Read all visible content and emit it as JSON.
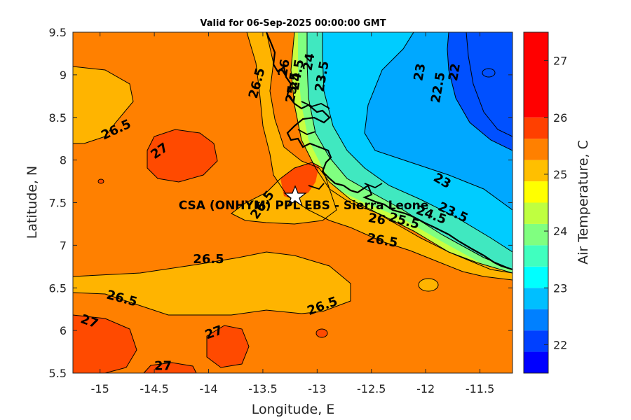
{
  "title": "Valid for 06-Sep-2025 00:00:00 GMT",
  "axes": {
    "xlabel": "Longitude, E",
    "ylabel": "Latitude, N",
    "xlim": [
      -15.25,
      -11.2
    ],
    "ylim": [
      5.5,
      9.5
    ],
    "xticks": [
      -15,
      -14.5,
      -14,
      -13.5,
      -13,
      -12.5,
      -12,
      -11.5
    ],
    "yticks": [
      5.5,
      6,
      6.5,
      7,
      7.5,
      8,
      8.5,
      9,
      9.5
    ]
  },
  "colorbar": {
    "label": "Air Temperature, C",
    "ticks": [
      22,
      23,
      24,
      25,
      26,
      27
    ],
    "range": [
      21.5,
      27.5
    ],
    "levels": [
      {
        "from": 21.5,
        "to": 21.875,
        "color": "#0000ff"
      },
      {
        "from": 21.875,
        "to": 22.25,
        "color": "#0040ff"
      },
      {
        "from": 22.25,
        "to": 22.625,
        "color": "#0080ff"
      },
      {
        "from": 22.625,
        "to": 23.0,
        "color": "#00bfff"
      },
      {
        "from": 23.0,
        "to": 23.375,
        "color": "#00ffff"
      },
      {
        "from": 23.375,
        "to": 23.75,
        "color": "#40ffbf"
      },
      {
        "from": 23.75,
        "to": 24.125,
        "color": "#80ff80"
      },
      {
        "from": 24.125,
        "to": 24.5,
        "color": "#bfff40"
      },
      {
        "from": 24.5,
        "to": 24.875,
        "color": "#ffff00"
      },
      {
        "from": 24.875,
        "to": 25.25,
        "color": "#ffbf00"
      },
      {
        "from": 25.25,
        "to": 25.625,
        "color": "#ff8000"
      },
      {
        "from": 25.625,
        "to": 26.0,
        "color": "#ff4000"
      },
      {
        "from": 26.0,
        "to": 27.5,
        "color": "#ff0000"
      }
    ]
  },
  "colors": {
    "t22_5": "#0050ff",
    "t23": "#00a8ff",
    "t23_5": "#00ccff",
    "t24": "#40e8c0",
    "t24_5": "#80ff80",
    "t25": "#c8ff40",
    "t25_5": "#ffff00",
    "t26": "#ffb400",
    "t26_5": "#ff8000",
    "t27": "#ff4a00"
  },
  "site": {
    "name": "CSA (ONHYM) PPL EBS - Sierra Leone",
    "lon": -13.24,
    "lat": 7.6
  },
  "contour_labels": [
    {
      "text": "26.5",
      "lon": -14.85,
      "lat": 8.35,
      "rot": -25
    },
    {
      "text": "27",
      "lon": -14.45,
      "lat": 8.1,
      "rot": -35
    },
    {
      "text": "26.5",
      "lon": -13.55,
      "lat": 8.9,
      "rot": -75
    },
    {
      "text": "26.5",
      "lon": -13.5,
      "lat": 7.47,
      "rot": -55
    },
    {
      "text": "26.5",
      "lon": -14.0,
      "lat": 6.83,
      "rot": 0
    },
    {
      "text": "26.5",
      "lon": -14.8,
      "lat": 6.37,
      "rot": 15
    },
    {
      "text": "26.5",
      "lon": -12.95,
      "lat": 6.28,
      "rot": -20
    },
    {
      "text": "27",
      "lon": -15.1,
      "lat": 6.1,
      "rot": 20
    },
    {
      "text": "27",
      "lon": -13.95,
      "lat": 5.97,
      "rot": -20
    },
    {
      "text": "27",
      "lon": -14.42,
      "lat": 5.58,
      "rot": 0
    },
    {
      "text": "26.5",
      "lon": -12.4,
      "lat": 7.05,
      "rot": 10
    },
    {
      "text": "26",
      "lon": -12.45,
      "lat": 7.3,
      "rot": 10
    },
    {
      "text": "25.5",
      "lon": -12.2,
      "lat": 7.28,
      "rot": 15
    },
    {
      "text": "24.5",
      "lon": -11.95,
      "lat": 7.35,
      "rot": 20
    },
    {
      "text": "23.5",
      "lon": -11.75,
      "lat": 7.38,
      "rot": 25
    },
    {
      "text": "23",
      "lon": -11.85,
      "lat": 7.75,
      "rot": 30
    },
    {
      "text": "23",
      "lon": -12.05,
      "lat": 9.03,
      "rot": -80
    },
    {
      "text": "22.5",
      "lon": -11.88,
      "lat": 8.85,
      "rot": -80
    },
    {
      "text": "22",
      "lon": -11.73,
      "lat": 9.03,
      "rot": -80
    },
    {
      "text": "23.5",
      "lon": -12.95,
      "lat": 8.98,
      "rot": -80
    },
    {
      "text": "24",
      "lon": -13.07,
      "lat": 9.15,
      "rot": -80
    },
    {
      "text": "24.5",
      "lon": -13.18,
      "lat": 9.0,
      "rot": -80
    },
    {
      "text": "26",
      "lon": -13.3,
      "lat": 9.08,
      "rot": -80
    },
    {
      "text": "25.5",
      "lon": -13.22,
      "lat": 8.85,
      "rot": -80
    }
  ]
}
